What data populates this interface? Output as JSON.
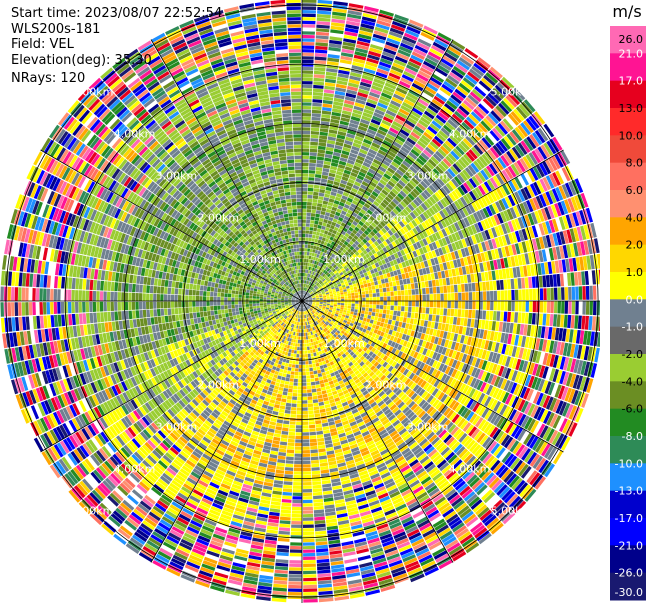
{
  "header": {
    "start_time": "Start time: 2023/08/07 22:52:54",
    "instrument": "WLS200s-181",
    "field": "Field: VEL",
    "elevation": "Elevation(deg): 35.30",
    "nrays": "NRays: 120"
  },
  "colorbar": {
    "unit": "m/s",
    "ticks": [
      "26.0",
      "21.0",
      "17.0",
      "13.0",
      "10.0",
      "8.0",
      "6.0",
      "4.0",
      "2.0",
      "1.0",
      "0.0",
      "-1.0",
      "-2.0",
      "-4.0",
      "-6.0",
      "-8.0",
      "-10.0",
      "-13.0",
      "-17.0",
      "-21.0",
      "-26.0",
      "-30.0"
    ],
    "colors": [
      "#ff69b4",
      "#ff1493",
      "#e6001e",
      "#ff2a2a",
      "#f04a3a",
      "#ff7060",
      "#ff9070",
      "#ffa500",
      "#ffd700",
      "#ffff00",
      "#708090",
      "#696969",
      "#9acd32",
      "#6b8e23",
      "#228b22",
      "#2e8b57",
      "#1e90ff",
      "#0000cd",
      "#0000ff",
      "#00008b",
      "#191970"
    ]
  },
  "chart_data": {
    "type": "heatmap",
    "title": "",
    "projection": "polar (PPI)",
    "field": "VEL",
    "units": "m/s",
    "nrays": 120,
    "range_rings_km": [
      1.0,
      2.0,
      3.0,
      4.0,
      5.0
    ],
    "range_ring_labels": [
      "1.00km",
      "2.00km",
      "3.00km",
      "4.00km",
      "5.00km"
    ],
    "max_range_km": 5.1,
    "radial_lines_deg": [
      0,
      30,
      60,
      90,
      120,
      150,
      180,
      210,
      240,
      270,
      300,
      330
    ],
    "color_scale_min": -30.0,
    "color_scale_max": 26.0,
    "dominant_pattern": "approaching (negative, green) winds toward west/south-west and receding (positive, yellow) winds toward east/north-east within about 3 km; noisy random values beyond about 4 km"
  }
}
